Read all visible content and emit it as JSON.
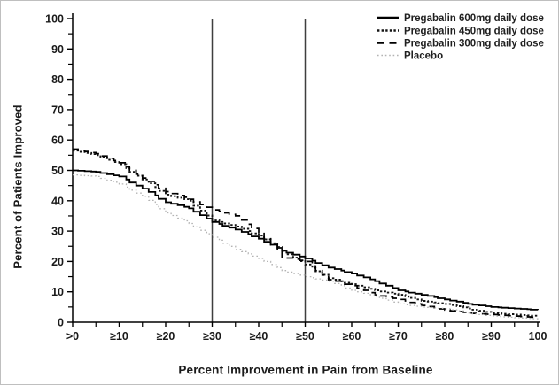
{
  "figure": {
    "background": "#ffffff",
    "border_color": "#bfbfbf",
    "axis_color": "#000000",
    "tick_label_color": "#1a1a1a",
    "reference_line_color": "#3f3f3f"
  },
  "chart_data": {
    "type": "line",
    "subtype": "step-survival",
    "title": "",
    "xlabel": "Percent Improvement in Pain from Baseline",
    "ylabel": "Percent of Patients Improved",
    "xlim": [
      0,
      100
    ],
    "ylim": [
      0,
      100
    ],
    "grid": false,
    "legend_position": "top-right",
    "x_tick_values": [
      0,
      10,
      20,
      30,
      40,
      50,
      60,
      70,
      80,
      90,
      100
    ],
    "x_tick_labels": [
      ">0",
      "≥10",
      "≥20",
      "≥30",
      "≥40",
      "≥50",
      "≥60",
      "≥70",
      "≥80",
      "≥90",
      "100"
    ],
    "x_minor_ticks": [
      5,
      15,
      25,
      35,
      45,
      55,
      65,
      75,
      85,
      95
    ],
    "y_tick_values": [
      0,
      10,
      20,
      30,
      40,
      50,
      60,
      70,
      80,
      90,
      100
    ],
    "y_tick_labels": [
      "0",
      "10",
      "20",
      "30",
      "40",
      "50",
      "60",
      "70",
      "80",
      "90",
      "100"
    ],
    "y_minor_ticks": [
      5,
      15,
      25,
      35,
      45,
      55,
      65,
      75,
      85,
      95
    ],
    "reference_lines_x": [
      30,
      50
    ],
    "x": [
      0,
      5,
      10,
      15,
      20,
      25,
      30,
      35,
      40,
      45,
      50,
      55,
      60,
      65,
      70,
      75,
      80,
      85,
      90,
      95,
      100
    ],
    "series": [
      {
        "name": "Pregabalin 600mg daily dose",
        "style": "solid",
        "color": "#000000",
        "values": [
          50,
          49.5,
          48,
          44,
          39.5,
          37.5,
          33,
          30.5,
          27.5,
          23.5,
          21,
          18,
          16,
          13.5,
          10.5,
          9,
          7.5,
          6,
          5,
          4.5,
          4
        ]
      },
      {
        "name": "Pregabalin 450mg daily dose",
        "style": "dense-dotted",
        "color": "#141414",
        "values": [
          56.5,
          55,
          52,
          47,
          42,
          40,
          33.5,
          31.5,
          28.5,
          23.5,
          19,
          14.5,
          12.5,
          10.5,
          9,
          7,
          6,
          4.5,
          3,
          2.5,
          2
        ]
      },
      {
        "name": "Pregabalin 300mg daily dose",
        "style": "dashed",
        "color": "#000000",
        "values": [
          57,
          55.5,
          52.5,
          47.5,
          43,
          40.5,
          37,
          35,
          29.5,
          21.5,
          20,
          14,
          12,
          9,
          7.5,
          5.5,
          4,
          3,
          2.5,
          2,
          1.5
        ]
      },
      {
        "name": "Placebo",
        "style": "light-dotted",
        "color": "#b3b3b3",
        "values": [
          48.5,
          48,
          45.5,
          41.5,
          36,
          32.5,
          28,
          24,
          21,
          17,
          15,
          13.5,
          10.5,
          8.5,
          6,
          5,
          4.4,
          3,
          2,
          1.5,
          1
        ]
      }
    ]
  }
}
